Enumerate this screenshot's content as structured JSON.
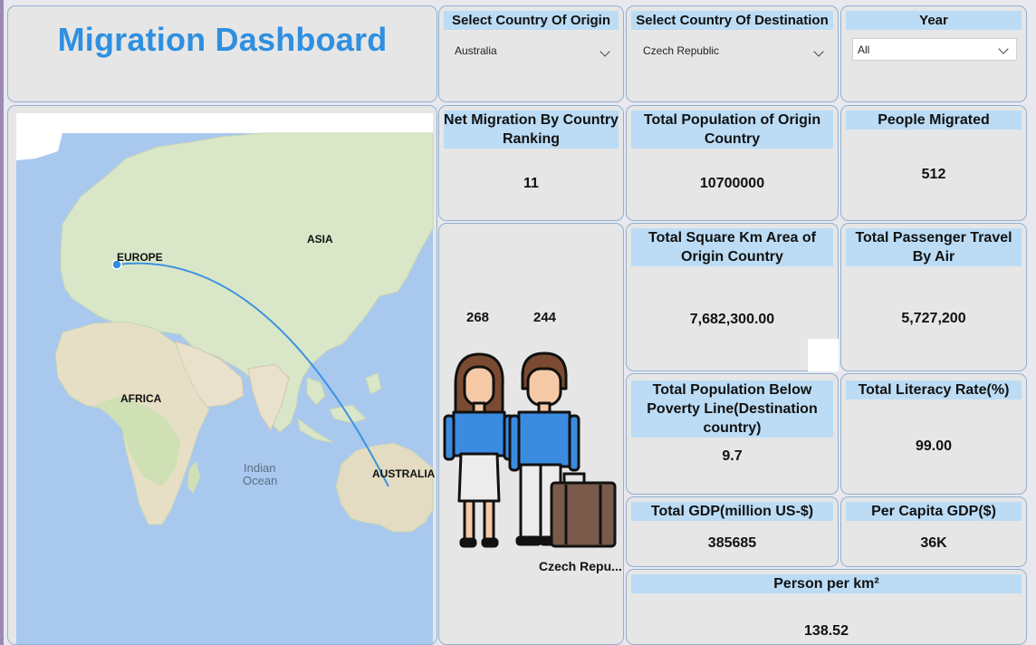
{
  "dashboard": {
    "title": "Migration Dashboard"
  },
  "slicers": {
    "origin": {
      "label": "Select Country Of Origin",
      "value": "Australia"
    },
    "destination": {
      "label": "Select Country Of Destination",
      "value": "Czech Republic"
    },
    "year": {
      "label": "Year",
      "value": "All"
    }
  },
  "map": {
    "labels": {
      "europe": "EUROPE",
      "asia": "ASIA",
      "africa": "AFRICA",
      "australia": "AUSTRALIA",
      "indian_ocean_1": "Indian",
      "indian_ocean_2": "Ocean"
    },
    "route": {
      "from": "EUROPE",
      "to": "AUSTRALIA",
      "color": "#3a93e0"
    }
  },
  "people": {
    "value_female": "268",
    "value_male": "244",
    "country_label": "Czech Repu..."
  },
  "cards": {
    "net_migration": {
      "title": "Net Migration By Country Ranking",
      "value": "11"
    },
    "total_population": {
      "title": "Total Population of Origin Country",
      "value": "10700000"
    },
    "people_migrated": {
      "title": "People Migrated",
      "value": "512"
    },
    "area": {
      "title": "Total Square Km Area of Origin Country",
      "value": "7,682,300.00"
    },
    "air_passengers": {
      "title": "Total Passenger Travel By Air",
      "value": "5,727,200"
    },
    "poverty": {
      "title": "Total Population Below Poverty Line(Destination country)",
      "value": "9.7"
    },
    "literacy": {
      "title": "Total Literacy Rate(%)",
      "value": "99.00"
    },
    "gdp": {
      "title": "Total GDP(million US-$)",
      "value": "385685"
    },
    "gdp_per_capita": {
      "title": "Per Capita GDP($)",
      "value": "36K"
    },
    "density": {
      "title": "Person per km²",
      "value": "138.52"
    }
  },
  "colors": {
    "accent": "#2f8fe0",
    "header_bg": "#bcdcf5",
    "tile_bg": "#e6e6e6",
    "tile_border": "#8fb1d2",
    "ocean": "#a9c8ee",
    "land": "#d9e6c8"
  }
}
